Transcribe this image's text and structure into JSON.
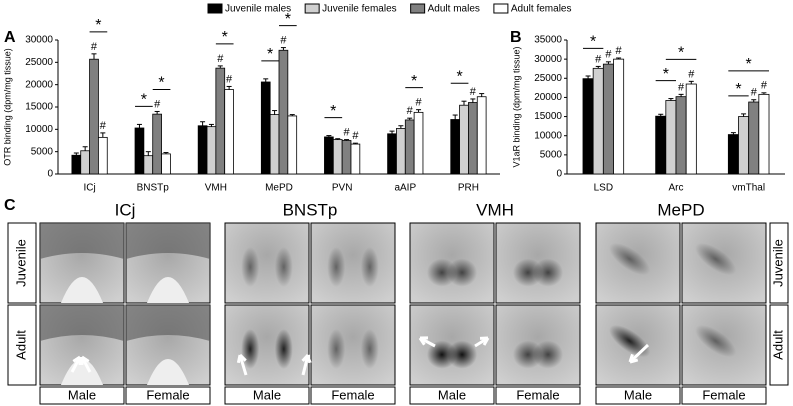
{
  "chart_data": [
    {
      "type": "bar",
      "panel": "A",
      "y_label": "OTR binding (dpm/mg tissue)",
      "categories": [
        "ICj",
        "BNSTp",
        "VMH",
        "MePD",
        "PVN",
        "aAIP",
        "PRH"
      ],
      "series": [
        {
          "name": "Juvenile males",
          "color": "#000000",
          "values": [
            4200,
            10300,
            10800,
            20600,
            8300,
            9000,
            12200
          ],
          "errors": [
            500,
            800,
            900,
            700,
            300,
            600,
            1000
          ]
        },
        {
          "name": "Juvenile females",
          "color": "#d0d0d0",
          "values": [
            5200,
            4100,
            10600,
            13300,
            7700,
            10200,
            15400
          ],
          "errors": [
            900,
            900,
            500,
            900,
            200,
            600,
            900
          ]
        },
        {
          "name": "Adult males",
          "color": "#808080",
          "values": [
            25700,
            13400,
            23700,
            27700,
            7500,
            12100,
            16000
          ],
          "errors": [
            1200,
            600,
            500,
            600,
            200,
            400,
            800
          ]
        },
        {
          "name": "Adult females",
          "color": "#ffffff",
          "values": [
            8200,
            4500,
            18900,
            13000,
            6700,
            13800,
            17300
          ],
          "errors": [
            1000,
            300,
            700,
            300,
            200,
            600,
            700
          ]
        }
      ],
      "ylim": [
        0,
        30000
      ],
      "yticks": [
        0,
        5000,
        10000,
        15000,
        20000,
        25000,
        30000
      ],
      "annotations": [
        {
          "text": "*",
          "category": 0,
          "from": 2,
          "to": 3
        },
        {
          "text": "#",
          "category": 0,
          "series": 2
        },
        {
          "text": "#",
          "category": 0,
          "series": 3
        },
        {
          "text": "*",
          "category": 1,
          "from": 0,
          "to": 1
        },
        {
          "text": "#",
          "category": 1,
          "series": 2
        },
        {
          "text": "*",
          "category": 1,
          "from": 2,
          "to": 3
        },
        {
          "text": "*",
          "category": 2,
          "from": 2,
          "to": 3
        },
        {
          "text": "#",
          "category": 2,
          "series": 2
        },
        {
          "text": "#",
          "category": 2,
          "series": 3
        },
        {
          "text": "*",
          "category": 3,
          "from": 0,
          "to": 1
        },
        {
          "text": "#",
          "category": 3,
          "series": 2
        },
        {
          "text": "*",
          "category": 3,
          "from": 2,
          "to": 3
        },
        {
          "text": "*",
          "category": 4,
          "from": 0,
          "to": 1
        },
        {
          "text": "#",
          "category": 4,
          "series": 2
        },
        {
          "text": "#",
          "category": 4,
          "series": 3
        },
        {
          "text": "*",
          "category": 5,
          "from": 2,
          "to": 3
        },
        {
          "text": "#",
          "category": 5,
          "series": 2
        },
        {
          "text": "#",
          "category": 5,
          "series": 3
        },
        {
          "text": "*",
          "category": 6,
          "from": 0,
          "to": 1
        },
        {
          "text": "#",
          "category": 6,
          "series": 2
        }
      ]
    },
    {
      "type": "bar",
      "panel": "B",
      "y_label": "V1aR binding (dpm/mg tissue)",
      "categories": [
        "LSD",
        "Arc",
        "vmThal"
      ],
      "series": [
        {
          "color": "#000000",
          "values": [
            24900,
            15100,
            10300
          ],
          "errors": [
            700,
            500,
            500
          ]
        },
        {
          "color": "#d0d0d0",
          "values": [
            27600,
            19200,
            15000
          ],
          "errors": [
            500,
            500,
            700
          ]
        },
        {
          "color": "#808080",
          "values": [
            28700,
            20200,
            18800
          ],
          "errors": [
            600,
            600,
            600
          ]
        },
        {
          "color": "#ffffff",
          "values": [
            30000,
            23500,
            20800
          ],
          "errors": [
            300,
            700,
            400
          ]
        }
      ],
      "ylim": [
        0,
        35000
      ],
      "yticks": [
        0,
        5000,
        10000,
        15000,
        20000,
        25000,
        30000,
        35000
      ],
      "annotations": [
        {
          "text": "*",
          "category": 0,
          "from": 0,
          "to": 1
        },
        {
          "text": "#",
          "category": 0,
          "series": 1
        },
        {
          "text": "#",
          "category": 0,
          "series": 2
        },
        {
          "text": "#",
          "category": 0,
          "series": 3
        },
        {
          "text": "*",
          "category": 1,
          "from": 0,
          "to": 1
        },
        {
          "text": "#",
          "category": 1,
          "series": 2
        },
        {
          "text": "#",
          "category": 1,
          "series": 3
        },
        {
          "text": "*",
          "category": 1,
          "from": 1,
          "to": 3
        },
        {
          "text": "*",
          "category": 2,
          "from": 0,
          "to": 1
        },
        {
          "text": "#",
          "category": 2,
          "series": 2
        },
        {
          "text": "#",
          "category": 2,
          "series": 3
        },
        {
          "text": "*",
          "category": 2,
          "from": 0,
          "to": 3
        }
      ]
    }
  ],
  "panel_c": {
    "label": "C",
    "regions": [
      "ICj",
      "BNSTp",
      "VMH",
      "MePD"
    ],
    "rows": [
      "Juvenile",
      "Adult"
    ],
    "columns": [
      "Male",
      "Female"
    ]
  }
}
